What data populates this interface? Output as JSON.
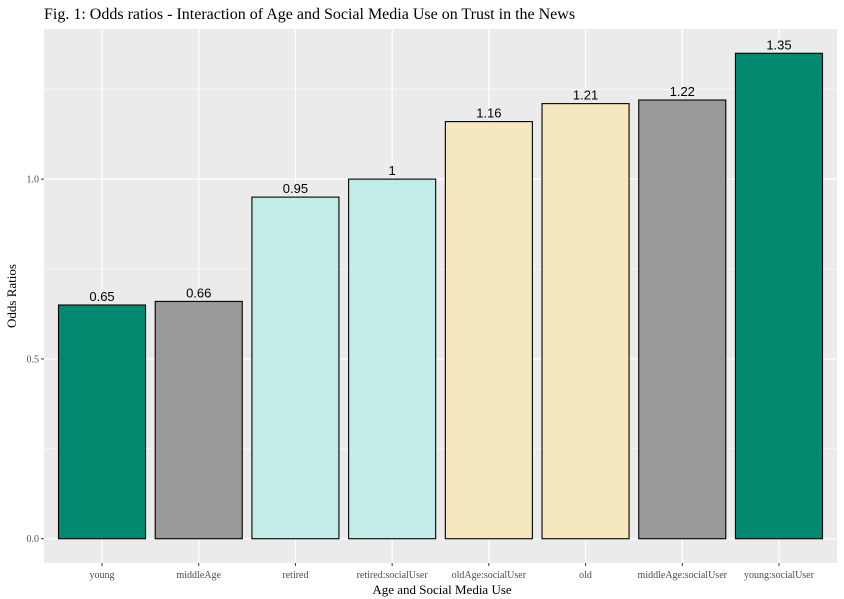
{
  "chart_data": {
    "type": "bar",
    "title": "Fig. 1: Odds ratios - Interaction of Age and Social Media Use on Trust in the News",
    "xlabel": "Age and Social Media Use",
    "ylabel": "Odds Ratios",
    "categories": [
      "young",
      "middleAge",
      "retired",
      "retired:socialUser",
      "oldAge:socialUser",
      "old",
      "middleAge:socialUser",
      "young:socialUser"
    ],
    "values": [
      0.65,
      0.66,
      0.95,
      1,
      1.16,
      1.21,
      1.22,
      1.35
    ],
    "value_labels": [
      "0.65",
      "0.66",
      "0.95",
      "1",
      "1.16",
      "1.21",
      "1.22",
      "1.35"
    ],
    "colors": [
      "#00896f",
      "#999999",
      "#c2ece7",
      "#c2ece7",
      "#f6e8be",
      "#f6e8be",
      "#999999",
      "#00896f"
    ],
    "ylim": [
      -0.0675,
      1.4175
    ],
    "yticks": [
      0,
      0.5,
      1
    ],
    "ytick_labels": [
      "0.0",
      "0.5",
      "1.0"
    ],
    "grid": true,
    "legend": "none"
  }
}
